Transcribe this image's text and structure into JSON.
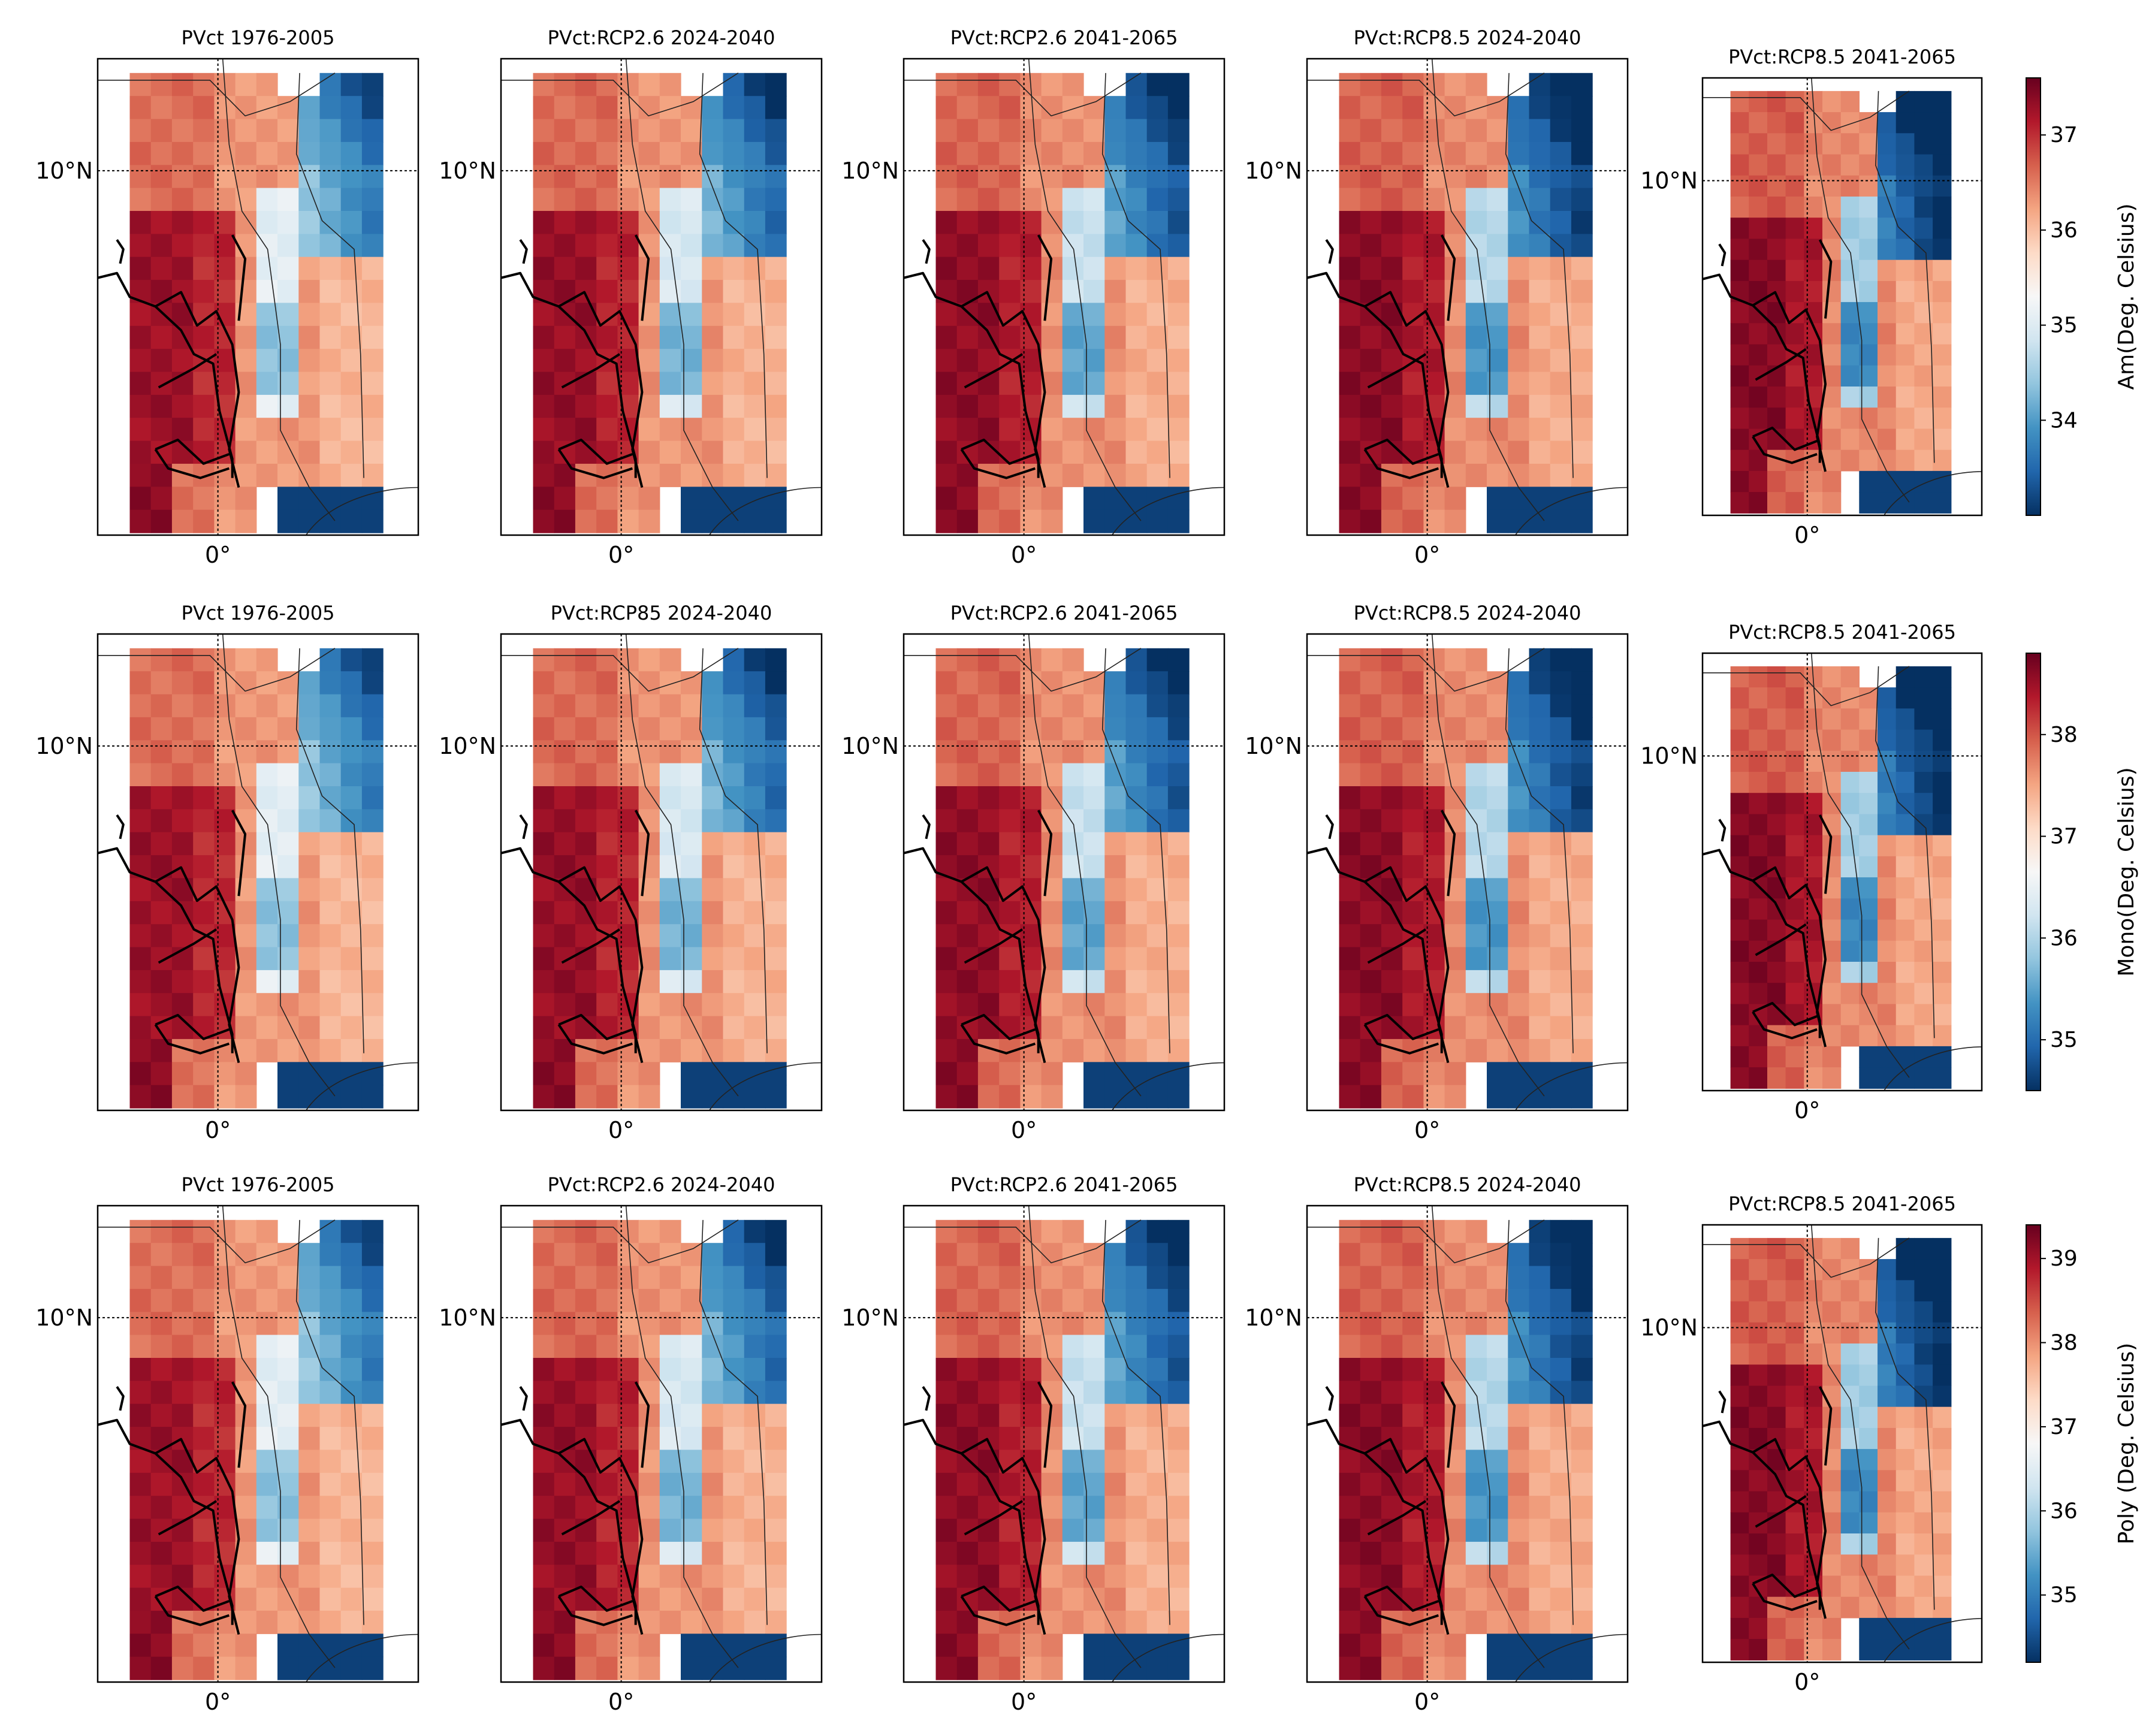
{
  "figure": {
    "layout": "3 rows x 5 columns of gridded maps, one colorbar per row",
    "map_axes": {
      "lat_label": "10°N",
      "lon_label": "0°"
    },
    "colormap": {
      "name": "RdBu_r",
      "low": "#053061",
      "mid": "#f7f7f7",
      "high": "#67001f"
    }
  },
  "chart_data": [
    {
      "type": "heatmap",
      "row": "Am",
      "colorbar_label": "Am(Deg. Celsius)",
      "vmin": 33.0,
      "vmax": 37.6,
      "colorbar_ticks": [
        "34",
        "35",
        "36",
        "37"
      ],
      "colorbar_tick_values": [
        34,
        35,
        36,
        37
      ],
      "panel_titles": [
        "PVct 1976-2005",
        "PVct:RCP2.6 2024-2040",
        "PVct:RCP2.6 2041-2065",
        "PVct:RCP8.5 2024-2040",
        "PVct:RCP8.5 2041-2065"
      ],
      "panel_offsets": [
        0.0,
        0.15,
        0.3,
        0.45,
        0.6
      ]
    },
    {
      "type": "heatmap",
      "row": "Mono",
      "colorbar_label": "Mono(Deg. Celsius)",
      "vmin": 34.5,
      "vmax": 38.8,
      "colorbar_ticks": [
        "35",
        "36",
        "37",
        "38"
      ],
      "colorbar_tick_values": [
        35,
        36,
        37,
        38
      ],
      "panel_titles": [
        "PVct 1976-2005",
        "PVct:RCP85 2024-2040",
        "PVct:RCP2.6 2041-2065",
        "PVct:RCP8.5 2024-2040",
        "PVct:RCP8.5 2041-2065"
      ],
      "panel_offsets": [
        0.0,
        0.15,
        0.3,
        0.45,
        0.6
      ]
    },
    {
      "type": "heatmap",
      "row": "Poly",
      "colorbar_label": "Poly (Deg. Celsius)",
      "vmin": 34.2,
      "vmax": 39.4,
      "colorbar_ticks": [
        "35",
        "36",
        "37",
        "38",
        "39"
      ],
      "colorbar_tick_values": [
        35,
        36,
        37,
        38,
        39
      ],
      "panel_titles": [
        "PVct 1976-2005",
        "PVct:RCP2.6 2024-2040",
        "PVct:RCP2.6 2041-2065",
        "PVct:RCP8.5 2024-2040",
        "PVct:RCP8.5 2041-2065"
      ],
      "panel_offsets": [
        0.0,
        0.15,
        0.3,
        0.45,
        0.6
      ]
    }
  ]
}
